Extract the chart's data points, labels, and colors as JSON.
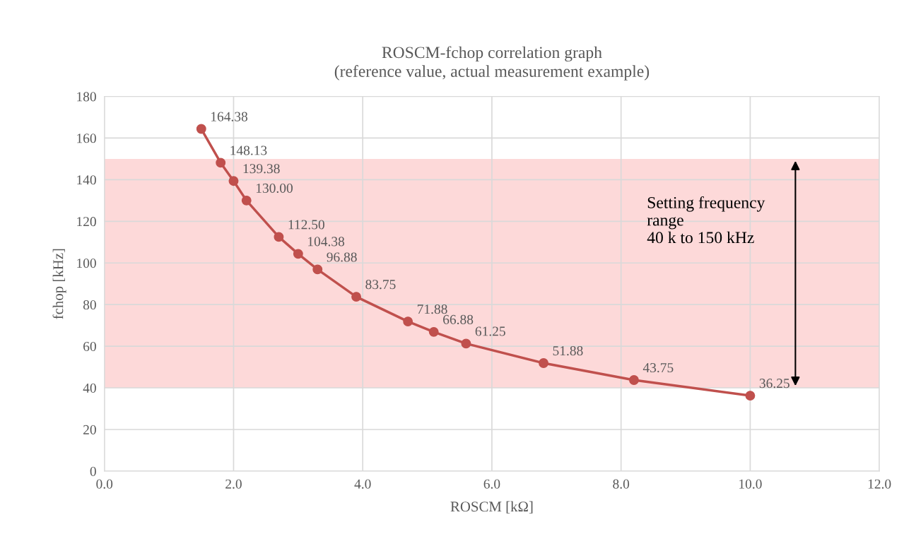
{
  "chart_data": {
    "type": "line",
    "title": "ROSCM-fchop correlation graph\n(reference value, actual measurement example)",
    "xlabel": "ROSCM [kΩ]",
    "ylabel": "fchop [kHz]",
    "series": [
      {
        "color": "#c0504d",
        "x": [
          1.5,
          1.8,
          2.0,
          2.2,
          2.7,
          3.0,
          3.3,
          3.9,
          4.7,
          5.1,
          5.6,
          6.8,
          8.2,
          10.0
        ],
        "values": [
          164.38,
          148.13,
          139.38,
          130.0,
          112.5,
          104.38,
          96.88,
          83.75,
          71.88,
          66.88,
          61.25,
          51.88,
          43.75,
          36.25
        ]
      }
    ],
    "value_labels": [
      "164.38",
      "148.13",
      "139.38",
      "130.00",
      "112.50",
      "104.38",
      "96.88",
      "83.75",
      "71.88",
      "66.88",
      "61.25",
      "51.88",
      "43.75",
      "36.25"
    ],
    "marker": "circle",
    "line_style": "solid",
    "grid": true,
    "legend": false,
    "xlim": [
      0,
      12
    ],
    "xticks": [
      {
        "value": 0,
        "label": "0.0"
      },
      {
        "value": 2,
        "label": "2.0"
      },
      {
        "value": 4,
        "label": "4.0"
      },
      {
        "value": 6,
        "label": "6.0"
      },
      {
        "value": 8,
        "label": "8.0"
      },
      {
        "value": 10,
        "label": "10.0"
      },
      {
        "value": 12,
        "label": "12.0"
      }
    ],
    "ylim": [
      0,
      180
    ],
    "yticks": [
      0,
      20,
      40,
      60,
      80,
      100,
      120,
      140,
      160,
      180
    ],
    "bands": [
      {
        "axis": "y",
        "from": 40,
        "to": 150,
        "label": "Setting frequency\nrange\n40 k to 150 kHz",
        "color": "#fdd9d9"
      }
    ]
  }
}
